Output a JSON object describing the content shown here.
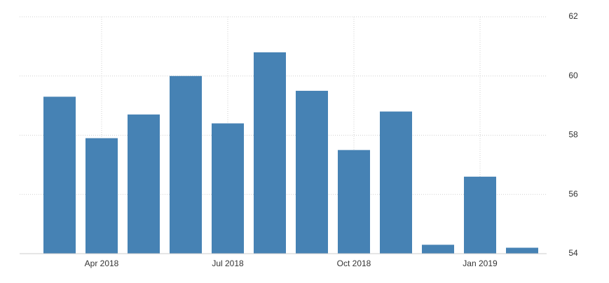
{
  "chart_data": {
    "type": "bar",
    "categories": [
      null,
      "Apr 2018",
      null,
      null,
      "Jul 2018",
      null,
      null,
      "Oct 2018",
      null,
      null,
      "Jan 2019",
      null
    ],
    "values": [
      59.3,
      57.9,
      58.7,
      60.0,
      58.4,
      60.8,
      59.5,
      57.5,
      58.8,
      54.3,
      56.6,
      54.2
    ],
    "color": "#4682b4",
    "ylim": [
      54,
      62
    ],
    "yticks": [
      54,
      56,
      58,
      60,
      62
    ],
    "grid": true
  }
}
